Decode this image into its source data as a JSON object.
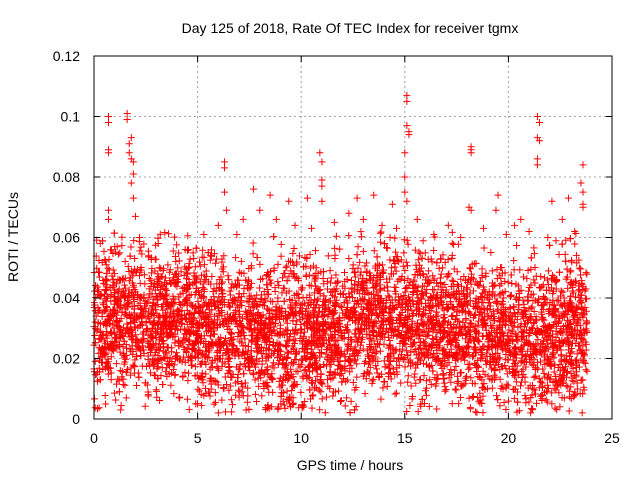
{
  "chart_data": {
    "type": "scatter",
    "title": "Day 125 of 2018, Rate Of TEC Index for receiver tgmx",
    "xlabel": "GPS time / hours",
    "ylabel": "ROTI / TECUs",
    "xlim": [
      0,
      25
    ],
    "ylim": [
      0,
      0.12
    ],
    "grid": true,
    "marker": "+",
    "color": "#ff0000",
    "x_ticks": [
      0,
      5,
      10,
      15,
      20,
      25
    ],
    "x_tick_labels": [
      "0",
      "5",
      "10",
      "15",
      "20",
      "25"
    ],
    "y_ticks": [
      0,
      0.02,
      0.04,
      0.06,
      0.08,
      0.1,
      0.12
    ],
    "y_tick_labels": [
      "0",
      "0.02",
      "0.04",
      "0.06",
      "0.08",
      "0.1",
      "0.12"
    ],
    "series": [
      {
        "name": "ROTI",
        "x_range": [
          0.0,
          23.8
        ],
        "typical_range": [
          0.005,
          0.055
        ],
        "points": [
          [
            0.7,
            0.1
          ],
          [
            0.7,
            0.098
          ],
          [
            0.7,
            0.089
          ],
          [
            0.7,
            0.088
          ],
          [
            0.7,
            0.069
          ],
          [
            0.7,
            0.066
          ],
          [
            1.6,
            0.101
          ],
          [
            1.6,
            0.099
          ],
          [
            1.7,
            0.091
          ],
          [
            1.8,
            0.093
          ],
          [
            1.9,
            0.085
          ],
          [
            1.9,
            0.081
          ],
          [
            1.8,
            0.078
          ],
          [
            1.9,
            0.073
          ],
          [
            2.0,
            0.067
          ],
          [
            1.7,
            0.088
          ],
          [
            1.8,
            0.086
          ],
          [
            6.3,
            0.085
          ],
          [
            6.3,
            0.083
          ],
          [
            6.3,
            0.075
          ],
          [
            6.4,
            0.069
          ],
          [
            7.7,
            0.076
          ],
          [
            8.5,
            0.074
          ],
          [
            9.4,
            0.072
          ],
          [
            10.3,
            0.073
          ],
          [
            10.9,
            0.088
          ],
          [
            11.0,
            0.085
          ],
          [
            11.0,
            0.079
          ],
          [
            11.0,
            0.077
          ],
          [
            11.0,
            0.072
          ],
          [
            12.7,
            0.073
          ],
          [
            13.5,
            0.074
          ],
          [
            14.4,
            0.071
          ],
          [
            15.1,
            0.107
          ],
          [
            15.1,
            0.105
          ],
          [
            15.1,
            0.097
          ],
          [
            15.2,
            0.095
          ],
          [
            15.2,
            0.094
          ],
          [
            15.0,
            0.088
          ],
          [
            15.0,
            0.08
          ],
          [
            15.0,
            0.075
          ],
          [
            15.1,
            0.072
          ],
          [
            18.2,
            0.09
          ],
          [
            18.2,
            0.089
          ],
          [
            18.2,
            0.088
          ],
          [
            18.1,
            0.07
          ],
          [
            18.2,
            0.069
          ],
          [
            19.5,
            0.074
          ],
          [
            19.4,
            0.069
          ],
          [
            20.6,
            0.066
          ],
          [
            21.4,
            0.1
          ],
          [
            21.5,
            0.098
          ],
          [
            21.4,
            0.093
          ],
          [
            21.5,
            0.092
          ],
          [
            21.4,
            0.086
          ],
          [
            21.4,
            0.084
          ],
          [
            22.1,
            0.072
          ],
          [
            22.9,
            0.073
          ],
          [
            23.6,
            0.084
          ],
          [
            23.5,
            0.078
          ],
          [
            23.6,
            0.075
          ],
          [
            23.6,
            0.071
          ],
          [
            23.6,
            0.07
          ],
          [
            2.2,
            0.06
          ],
          [
            3.1,
            0.058
          ],
          [
            4.4,
            0.056
          ],
          [
            5.3,
            0.061
          ],
          [
            6.0,
            0.064
          ],
          [
            7.2,
            0.066
          ],
          [
            8.0,
            0.069
          ],
          [
            8.8,
            0.066
          ],
          [
            9.7,
            0.064
          ],
          [
            10.5,
            0.063
          ],
          [
            11.6,
            0.065
          ],
          [
            12.3,
            0.068
          ],
          [
            13.0,
            0.066
          ],
          [
            13.9,
            0.064
          ],
          [
            14.6,
            0.063
          ],
          [
            15.6,
            0.066
          ],
          [
            16.4,
            0.061
          ],
          [
            17.1,
            0.064
          ],
          [
            17.7,
            0.06
          ],
          [
            18.8,
            0.063
          ],
          [
            19.9,
            0.061
          ],
          [
            20.3,
            0.064
          ],
          [
            21.0,
            0.062
          ],
          [
            21.9,
            0.06
          ],
          [
            22.6,
            0.066
          ],
          [
            23.2,
            0.062
          ],
          [
            0.3,
            0.058
          ],
          [
            1.0,
            0.057
          ]
        ],
        "seed": 125
      }
    ]
  }
}
